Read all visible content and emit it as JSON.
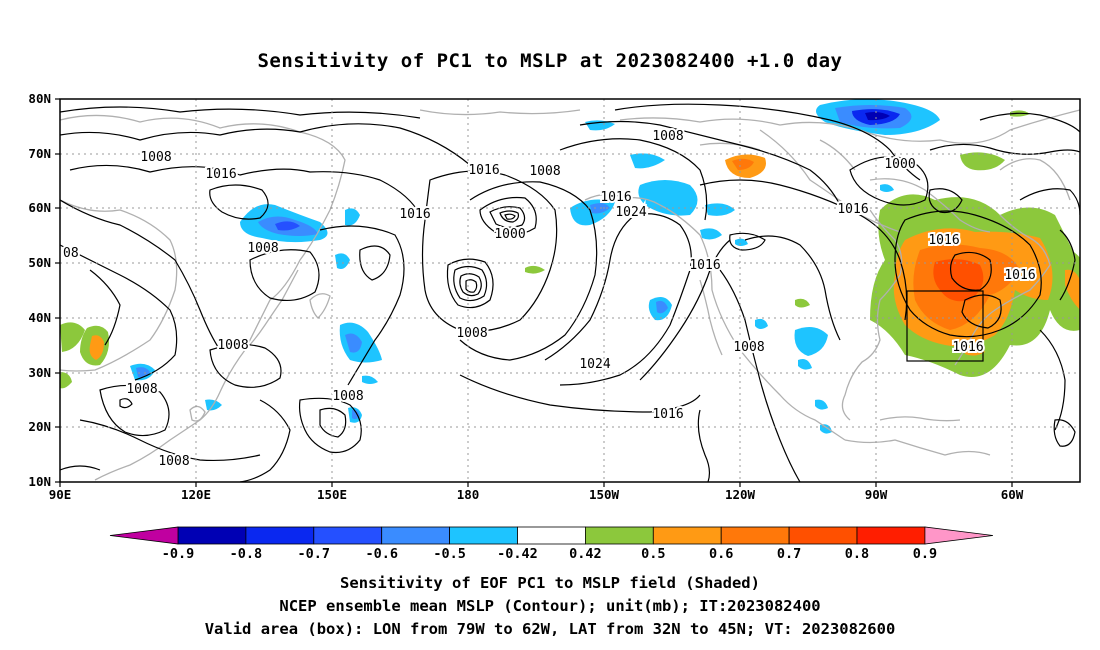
{
  "title": "Sensitivity of PC1 to MSLP at 2023082400 +1.0 day",
  "map": {
    "lon_labels": [
      "90E",
      "120E",
      "150E",
      "180",
      "150W",
      "120W",
      "90W",
      "60W"
    ],
    "lat_labels": [
      "80N",
      "70N",
      "60N",
      "50N",
      "40N",
      "30N",
      "20N",
      "10N"
    ],
    "contour_labels": [
      "1008",
      "1016",
      "1008",
      "1016",
      "1016",
      "1008",
      "1000",
      "1016",
      "1024",
      "1016",
      "1008",
      "1000",
      "1016",
      "1008",
      "1016",
      "1016",
      "1008",
      "1008",
      "1024",
      "1008",
      "1016",
      "1008",
      "1016",
      "1008"
    ],
    "valid_box": {
      "lon_range": [
        "79W",
        "62W"
      ],
      "lat_range": [
        "32N",
        "45N"
      ]
    },
    "colors": {
      "neg_09": "#c000a0",
      "neg_08": "#0000b4",
      "neg_07": "#0a28f0",
      "neg_06": "#2550ff",
      "neg_05": "#3a8cff",
      "neg_042": "#1ec4ff",
      "pos_042": "#8cc83c",
      "pos_05": "#ff9a14",
      "pos_06": "#ff780a",
      "pos_07": "#ff5000",
      "pos_08": "#ff1e00",
      "pos_09": "#ff96c8",
      "coast": "#b0b0b0",
      "contour": "#000000",
      "grid": "#999999"
    }
  },
  "colorbar": {
    "labels": [
      "-0.9",
      "-0.8",
      "-0.7",
      "-0.6",
      "-0.5",
      "-0.42",
      "0.42",
      "0.5",
      "0.6",
      "0.7",
      "0.8",
      "0.9"
    ],
    "colors": [
      "#0000b4",
      "#0a28f0",
      "#2550ff",
      "#3a8cff",
      "#1ec4ff",
      "#ffffff",
      "#8cc83c",
      "#ff9a14",
      "#ff780a",
      "#ff5000",
      "#ff1e00"
    ],
    "low_end_color": "#c000a0",
    "high_end_color": "#ff96c8"
  },
  "captions": [
    "Sensitivity of EOF PC1 to MSLP field (Shaded)",
    "NCEP ensemble mean MSLP (Contour); unit(mb); IT:2023082400",
    "Valid area (box): LON from 79W to 62W, LAT from 32N to 45N; VT: 2023082600"
  ]
}
